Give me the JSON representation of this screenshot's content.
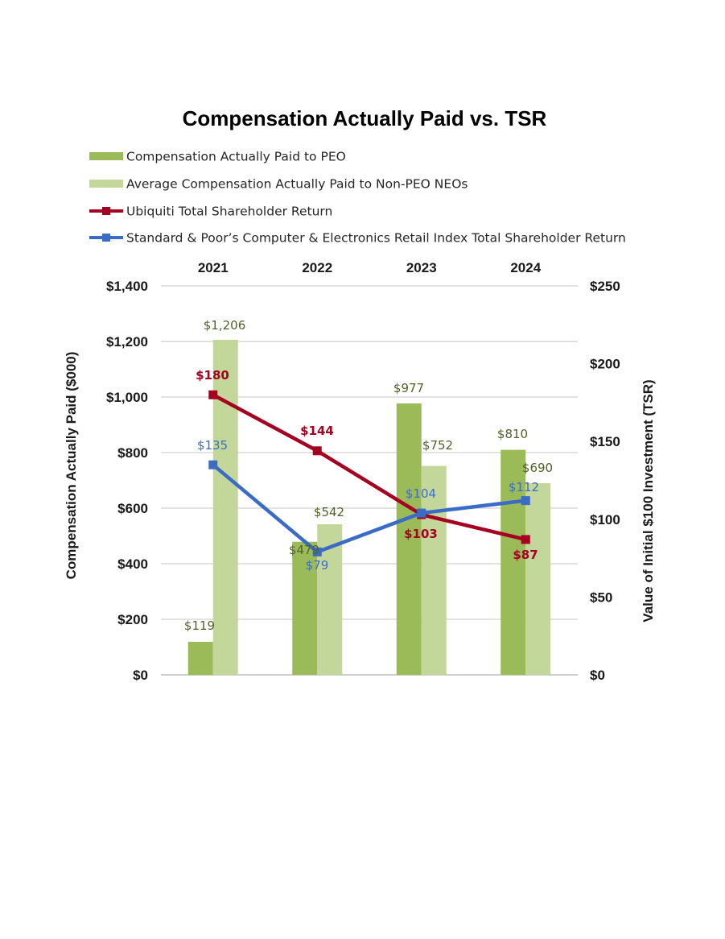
{
  "chart_data": {
    "type": "bar",
    "title": "Compensation Actually Paid vs. TSR",
    "categories": [
      "2021",
      "2022",
      "2023",
      "2024"
    ],
    "ylabel": "Compensation Actually Paid ($000)",
    "y2label": "Value of Initial $100 Investment (TSR)",
    "ylim": [
      0,
      1400
    ],
    "y2lim": [
      0,
      250
    ],
    "yticks": [
      "$0",
      "$200",
      "$400",
      "$600",
      "$800",
      "$1,000",
      "$1,200",
      "$1,400"
    ],
    "y2ticks": [
      "$0",
      "$50",
      "$100",
      "$150",
      "$200",
      "$250"
    ],
    "grid": true,
    "legend_position": "top",
    "series": [
      {
        "name": "Compensation Actually Paid to PEO",
        "kind": "bar",
        "axis": "left",
        "color": "#9bbb59",
        "label_color": "#4f6228",
        "values": [
          119,
          479,
          977,
          810
        ],
        "labels": [
          "$119",
          "$479",
          "$977",
          "$810"
        ]
      },
      {
        "name": "Average Compensation Actually Paid to Non-PEO NEOs",
        "kind": "bar",
        "axis": "left",
        "color": "#c4d79b",
        "label_color": "#4f6228",
        "values": [
          1206,
          542,
          752,
          690
        ],
        "labels": [
          "$1,206",
          "$542",
          "$752",
          "$690"
        ]
      },
      {
        "name": "Ubiquiti Total Shareholder Return",
        "kind": "line",
        "axis": "right",
        "color": "#a50021",
        "values": [
          180,
          144,
          103,
          87
        ],
        "labels": [
          "$180",
          "$144",
          "$103",
          "$87"
        ]
      },
      {
        "name": "Standard & Poor’s Computer & Electronics Retail Index Total Shareholder Return",
        "kind": "line",
        "axis": "right",
        "color": "#3a6cc6",
        "values": [
          135,
          79,
          104,
          112
        ],
        "labels": [
          "$135",
          "$79",
          "$104",
          "$112"
        ]
      }
    ]
  }
}
